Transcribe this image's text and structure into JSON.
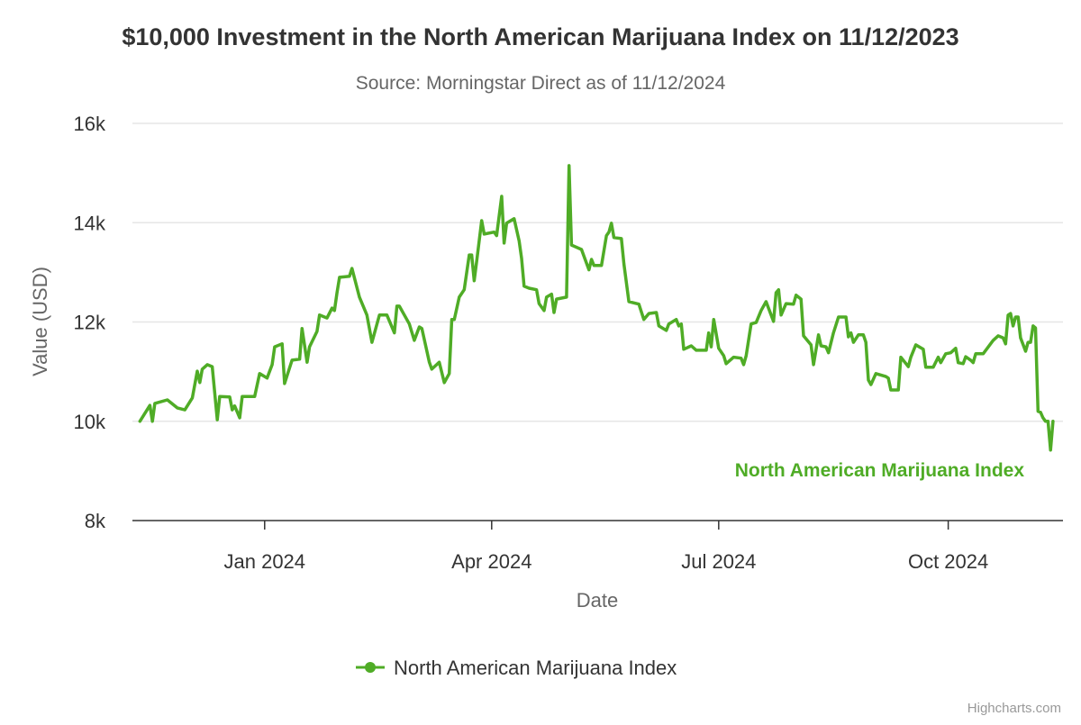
{
  "chart_data": {
    "type": "line",
    "title": "$10,000 Investment in the North American Marijuana Index on 11/12/2023",
    "subtitle": "Source: Morningstar Direct as of 11/12/2024",
    "xlabel": "Date",
    "ylabel": "Value (USD)",
    "ylim": [
      8000,
      16000
    ],
    "xlim": [
      "2023-11-09",
      "2024-11-16"
    ],
    "y_ticks": [
      {
        "value": 8000,
        "label": "8k"
      },
      {
        "value": 10000,
        "label": "10k"
      },
      {
        "value": 12000,
        "label": "12k"
      },
      {
        "value": 14000,
        "label": "14k"
      },
      {
        "value": 16000,
        "label": "16k"
      }
    ],
    "x_ticks": [
      {
        "date": "2024-01-01",
        "label": "Jan 2024"
      },
      {
        "date": "2024-04-01",
        "label": "Apr 2024"
      },
      {
        "date": "2024-07-01",
        "label": "Jul 2024"
      },
      {
        "date": "2024-10-01",
        "label": "Oct 2024"
      }
    ],
    "grid": "horizontal",
    "legend_position": "bottom",
    "credits": "Highcharts.com",
    "series": [
      {
        "name": "North American Marijuana Index",
        "color": "#4fac26",
        "points": [
          [
            "2023-11-12",
            10000
          ],
          [
            "2023-11-16",
            10320
          ],
          [
            "2023-11-17",
            10000
          ],
          [
            "2023-11-18",
            10360
          ],
          [
            "2023-11-23",
            10430
          ],
          [
            "2023-11-27",
            10270
          ],
          [
            "2023-11-30",
            10230
          ],
          [
            "2023-12-03",
            10470
          ],
          [
            "2023-12-05",
            11010
          ],
          [
            "2023-12-06",
            10780
          ],
          [
            "2023-12-07",
            11050
          ],
          [
            "2023-12-09",
            11140
          ],
          [
            "2023-12-11",
            11100
          ],
          [
            "2023-12-13",
            10030
          ],
          [
            "2023-12-14",
            10500
          ],
          [
            "2023-12-18",
            10490
          ],
          [
            "2023-12-19",
            10230
          ],
          [
            "2023-12-20",
            10310
          ],
          [
            "2023-12-22",
            10070
          ],
          [
            "2023-12-23",
            10500
          ],
          [
            "2023-12-28",
            10500
          ],
          [
            "2023-12-30",
            10960
          ],
          [
            "2024-01-02",
            10870
          ],
          [
            "2024-01-04",
            11140
          ],
          [
            "2024-01-05",
            11500
          ],
          [
            "2024-01-08",
            11560
          ],
          [
            "2024-01-09",
            10760
          ],
          [
            "2024-01-12",
            11230
          ],
          [
            "2024-01-15",
            11250
          ],
          [
            "2024-01-16",
            11870
          ],
          [
            "2024-01-18",
            11190
          ],
          [
            "2024-01-19",
            11500
          ],
          [
            "2024-01-22",
            11810
          ],
          [
            "2024-01-23",
            12140
          ],
          [
            "2024-01-26",
            12080
          ],
          [
            "2024-01-28",
            12280
          ],
          [
            "2024-01-29",
            12230
          ],
          [
            "2024-01-30",
            12590
          ],
          [
            "2024-01-31",
            12900
          ],
          [
            "2024-02-04",
            12920
          ],
          [
            "2024-02-05",
            13080
          ],
          [
            "2024-02-08",
            12500
          ],
          [
            "2024-02-11",
            12140
          ],
          [
            "2024-02-13",
            11590
          ],
          [
            "2024-02-16",
            12140
          ],
          [
            "2024-02-19",
            12140
          ],
          [
            "2024-02-22",
            11780
          ],
          [
            "2024-02-23",
            12320
          ],
          [
            "2024-02-24",
            12320
          ],
          [
            "2024-02-28",
            11960
          ],
          [
            "2024-03-01",
            11630
          ],
          [
            "2024-03-03",
            11900
          ],
          [
            "2024-03-04",
            11870
          ],
          [
            "2024-03-07",
            11190
          ],
          [
            "2024-03-08",
            11050
          ],
          [
            "2024-03-11",
            11190
          ],
          [
            "2024-03-13",
            10780
          ],
          [
            "2024-03-15",
            10960
          ],
          [
            "2024-03-16",
            12050
          ],
          [
            "2024-03-17",
            12050
          ],
          [
            "2024-03-19",
            12500
          ],
          [
            "2024-03-21",
            12650
          ],
          [
            "2024-03-23",
            13350
          ],
          [
            "2024-03-24",
            13350
          ],
          [
            "2024-03-25",
            12830
          ],
          [
            "2024-03-26",
            13230
          ],
          [
            "2024-03-28",
            14040
          ],
          [
            "2024-03-29",
            13770
          ],
          [
            "2024-04-02",
            13810
          ],
          [
            "2024-04-03",
            13740
          ],
          [
            "2024-04-05",
            14530
          ],
          [
            "2024-04-06",
            13590
          ],
          [
            "2024-04-07",
            13990
          ],
          [
            "2024-04-10",
            14080
          ],
          [
            "2024-04-12",
            13630
          ],
          [
            "2024-04-13",
            13280
          ],
          [
            "2024-04-14",
            12720
          ],
          [
            "2024-04-16",
            12680
          ],
          [
            "2024-04-19",
            12650
          ],
          [
            "2024-04-20",
            12370
          ],
          [
            "2024-04-22",
            12230
          ],
          [
            "2024-04-23",
            12500
          ],
          [
            "2024-04-25",
            12560
          ],
          [
            "2024-04-26",
            12190
          ],
          [
            "2024-04-27",
            12460
          ],
          [
            "2024-05-01",
            12500
          ],
          [
            "2024-05-02",
            15150
          ],
          [
            "2024-05-03",
            13550
          ],
          [
            "2024-05-07",
            13460
          ],
          [
            "2024-05-10",
            13050
          ],
          [
            "2024-05-11",
            13260
          ],
          [
            "2024-05-12",
            13140
          ],
          [
            "2024-05-15",
            13140
          ],
          [
            "2024-05-17",
            13740
          ],
          [
            "2024-05-18",
            13810
          ],
          [
            "2024-05-19",
            13990
          ],
          [
            "2024-05-20",
            13700
          ],
          [
            "2024-05-23",
            13680
          ],
          [
            "2024-05-24",
            13170
          ],
          [
            "2024-05-26",
            12410
          ],
          [
            "2024-05-30",
            12360
          ],
          [
            "2024-06-01",
            12050
          ],
          [
            "2024-06-03",
            12170
          ],
          [
            "2024-06-06",
            12190
          ],
          [
            "2024-06-07",
            11920
          ],
          [
            "2024-06-10",
            11830
          ],
          [
            "2024-06-11",
            11960
          ],
          [
            "2024-06-14",
            12050
          ],
          [
            "2024-06-15",
            11920
          ],
          [
            "2024-06-16",
            11960
          ],
          [
            "2024-06-17",
            11450
          ],
          [
            "2024-06-20",
            11520
          ],
          [
            "2024-06-22",
            11430
          ],
          [
            "2024-06-26",
            11430
          ],
          [
            "2024-06-27",
            11780
          ],
          [
            "2024-06-28",
            11500
          ],
          [
            "2024-06-29",
            12050
          ],
          [
            "2024-07-01",
            11470
          ],
          [
            "2024-07-03",
            11320
          ],
          [
            "2024-07-04",
            11160
          ],
          [
            "2024-07-07",
            11290
          ],
          [
            "2024-07-10",
            11270
          ],
          [
            "2024-07-11",
            11140
          ],
          [
            "2024-07-12",
            11320
          ],
          [
            "2024-07-14",
            11960
          ],
          [
            "2024-07-16",
            11990
          ],
          [
            "2024-07-18",
            12230
          ],
          [
            "2024-07-20",
            12410
          ],
          [
            "2024-07-22",
            12140
          ],
          [
            "2024-07-23",
            12010
          ],
          [
            "2024-07-24",
            12590
          ],
          [
            "2024-07-25",
            12650
          ],
          [
            "2024-07-26",
            12140
          ],
          [
            "2024-07-28",
            12370
          ],
          [
            "2024-07-31",
            12360
          ],
          [
            "2024-08-01",
            12540
          ],
          [
            "2024-08-03",
            12460
          ],
          [
            "2024-08-04",
            11720
          ],
          [
            "2024-08-07",
            11540
          ],
          [
            "2024-08-08",
            11140
          ],
          [
            "2024-08-10",
            11740
          ],
          [
            "2024-08-11",
            11520
          ],
          [
            "2024-08-13",
            11500
          ],
          [
            "2024-08-14",
            11380
          ],
          [
            "2024-08-16",
            11780
          ],
          [
            "2024-08-18",
            12100
          ],
          [
            "2024-08-21",
            12100
          ],
          [
            "2024-08-22",
            11700
          ],
          [
            "2024-08-23",
            11780
          ],
          [
            "2024-08-24",
            11590
          ],
          [
            "2024-08-26",
            11740
          ],
          [
            "2024-08-28",
            11740
          ],
          [
            "2024-08-29",
            11590
          ],
          [
            "2024-08-30",
            10830
          ],
          [
            "2024-08-31",
            10740
          ],
          [
            "2024-09-02",
            10960
          ],
          [
            "2024-09-06",
            10900
          ],
          [
            "2024-09-07",
            10870
          ],
          [
            "2024-09-08",
            10630
          ],
          [
            "2024-09-11",
            10630
          ],
          [
            "2024-09-12",
            11290
          ],
          [
            "2024-09-15",
            11100
          ],
          [
            "2024-09-16",
            11290
          ],
          [
            "2024-09-18",
            11540
          ],
          [
            "2024-09-21",
            11450
          ],
          [
            "2024-09-22",
            11090
          ],
          [
            "2024-09-25",
            11090
          ],
          [
            "2024-09-27",
            11290
          ],
          [
            "2024-09-28",
            11180
          ],
          [
            "2024-09-30",
            11360
          ],
          [
            "2024-10-02",
            11380
          ],
          [
            "2024-10-04",
            11470
          ],
          [
            "2024-10-05",
            11180
          ],
          [
            "2024-10-07",
            11160
          ],
          [
            "2024-10-08",
            11300
          ],
          [
            "2024-10-10",
            11230
          ],
          [
            "2024-10-11",
            11180
          ],
          [
            "2024-10-12",
            11360
          ],
          [
            "2024-10-15",
            11360
          ],
          [
            "2024-10-19",
            11630
          ],
          [
            "2024-10-21",
            11720
          ],
          [
            "2024-10-23",
            11680
          ],
          [
            "2024-10-24",
            11560
          ],
          [
            "2024-10-25",
            12140
          ],
          [
            "2024-10-26",
            12170
          ],
          [
            "2024-10-27",
            11920
          ],
          [
            "2024-10-28",
            12100
          ],
          [
            "2024-10-29",
            12100
          ],
          [
            "2024-10-30",
            11680
          ],
          [
            "2024-11-01",
            11410
          ],
          [
            "2024-11-02",
            11590
          ],
          [
            "2024-11-03",
            11590
          ],
          [
            "2024-11-04",
            11920
          ],
          [
            "2024-11-05",
            11880
          ],
          [
            "2024-11-06",
            10200
          ],
          [
            "2024-11-07",
            10180
          ],
          [
            "2024-11-08",
            10070
          ],
          [
            "2024-11-09",
            10000
          ],
          [
            "2024-11-10",
            10000
          ],
          [
            "2024-11-11",
            9420
          ],
          [
            "2024-11-12",
            10000
          ]
        ]
      }
    ]
  }
}
